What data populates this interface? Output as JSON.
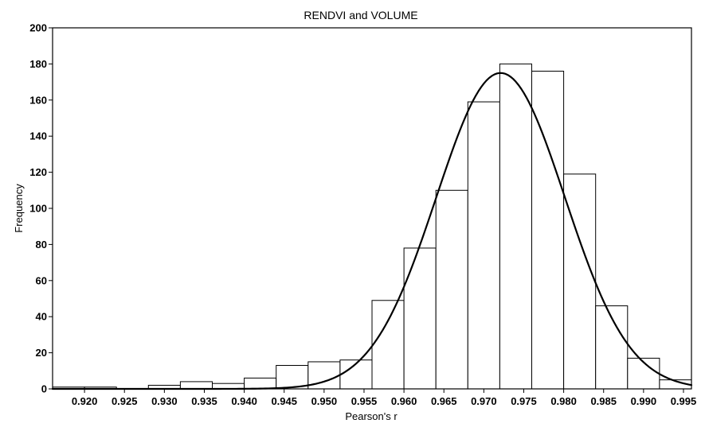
{
  "chart_data": {
    "type": "bar",
    "title": "RENDVI and VOLUME",
    "xlabel": "Pearson's r",
    "ylabel": "Frequency",
    "xlim": [
      0.916,
      0.996
    ],
    "ylim": [
      0,
      200
    ],
    "x_ticks": [
      0.92,
      0.925,
      0.93,
      0.935,
      0.94,
      0.945,
      0.95,
      0.955,
      0.96,
      0.965,
      0.97,
      0.975,
      0.98,
      0.985,
      0.99,
      0.995
    ],
    "x_tick_labels": [
      "0.920",
      "0.925",
      "0.930",
      "0.935",
      "0.940",
      "0.945",
      "0.950",
      "0.955",
      "0.960",
      "0.965",
      "0.970",
      "0.975",
      "0.980",
      "0.985",
      "0.990",
      "0.995"
    ],
    "y_ticks": [
      0,
      20,
      40,
      60,
      80,
      100,
      120,
      140,
      160,
      180,
      200
    ],
    "y_tick_labels": [
      "0",
      "20",
      "40",
      "60",
      "80",
      "100",
      "120",
      "140",
      "160",
      "180",
      "200"
    ],
    "bins": [
      {
        "start": 0.916,
        "end": 0.92,
        "count": 1
      },
      {
        "start": 0.92,
        "end": 0.924,
        "count": 1
      },
      {
        "start": 0.924,
        "end": 0.928,
        "count": 0
      },
      {
        "start": 0.928,
        "end": 0.932,
        "count": 2
      },
      {
        "start": 0.932,
        "end": 0.936,
        "count": 4
      },
      {
        "start": 0.936,
        "end": 0.94,
        "count": 3
      },
      {
        "start": 0.94,
        "end": 0.944,
        "count": 6
      },
      {
        "start": 0.944,
        "end": 0.948,
        "count": 13
      },
      {
        "start": 0.948,
        "end": 0.952,
        "count": 15
      },
      {
        "start": 0.952,
        "end": 0.956,
        "count": 16
      },
      {
        "start": 0.956,
        "end": 0.96,
        "count": 49
      },
      {
        "start": 0.96,
        "end": 0.964,
        "count": 78
      },
      {
        "start": 0.964,
        "end": 0.968,
        "count": 110
      },
      {
        "start": 0.968,
        "end": 0.972,
        "count": 159
      },
      {
        "start": 0.972,
        "end": 0.976,
        "count": 180
      },
      {
        "start": 0.976,
        "end": 0.98,
        "count": 176
      },
      {
        "start": 0.98,
        "end": 0.984,
        "count": 119
      },
      {
        "start": 0.984,
        "end": 0.988,
        "count": 46
      },
      {
        "start": 0.988,
        "end": 0.992,
        "count": 17
      },
      {
        "start": 0.992,
        "end": 0.996,
        "count": 5
      }
    ],
    "curve": {
      "type": "normal",
      "mean": 0.9721,
      "sd": 0.00805,
      "peak": 175,
      "xlim": [
        0.916,
        0.996
      ]
    }
  }
}
